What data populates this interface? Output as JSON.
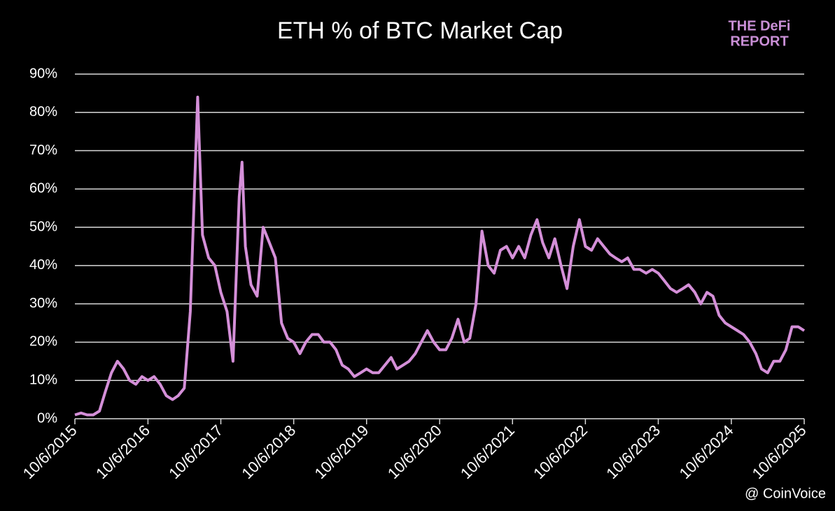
{
  "chart_data": {
    "type": "line",
    "title": "ETH % of BTC Market Cap",
    "logo": [
      "THE DeFi",
      "REPORT"
    ],
    "watermark": "@ CoinVoice",
    "x": [
      "10/6/2015",
      "11/6/2015",
      "12/6/2015",
      "1/6/2016",
      "2/6/2016",
      "3/6/2016",
      "4/6/2016",
      "5/6/2016",
      "6/6/2016",
      "7/6/2016",
      "8/6/2016",
      "9/6/2016",
      "10/6/2016",
      "11/6/2016",
      "12/6/2016",
      "1/6/2017",
      "2/6/2017",
      "3/6/2017",
      "4/6/2017",
      "5/6/2017",
      "6/12/2017",
      "7/6/2017",
      "8/6/2017",
      "9/6/2017",
      "10/6/2017",
      "11/6/2017",
      "12/6/2017",
      "1/6/2018",
      "1/20/2018",
      "2/6/2018",
      "3/6/2018",
      "4/6/2018",
      "5/6/2018",
      "6/6/2018",
      "7/6/2018",
      "8/6/2018",
      "9/6/2018",
      "10/6/2018",
      "11/6/2018",
      "12/6/2018",
      "1/6/2019",
      "2/6/2019",
      "3/6/2019",
      "4/6/2019",
      "5/6/2019",
      "6/6/2019",
      "7/6/2019",
      "8/6/2019",
      "9/6/2019",
      "10/6/2019",
      "11/6/2019",
      "12/6/2019",
      "1/6/2020",
      "2/6/2020",
      "3/6/2020",
      "4/6/2020",
      "5/6/2020",
      "6/6/2020",
      "7/6/2020",
      "8/6/2020",
      "9/6/2020",
      "10/6/2020",
      "11/6/2020",
      "12/6/2020",
      "1/6/2021",
      "2/6/2021",
      "3/6/2021",
      "4/6/2021",
      "5/6/2021",
      "6/6/2021",
      "7/6/2021",
      "8/6/2021",
      "9/6/2021",
      "10/6/2021",
      "11/6/2021",
      "12/6/2021",
      "1/6/2022",
      "2/6/2022",
      "3/6/2022",
      "4/6/2022",
      "5/6/2022",
      "6/6/2022",
      "7/6/2022",
      "8/6/2022",
      "9/6/2022",
      "10/6/2022",
      "11/6/2022",
      "12/6/2022",
      "1/6/2023",
      "2/6/2023",
      "3/6/2023",
      "4/6/2023",
      "5/6/2023",
      "6/6/2023",
      "7/6/2023",
      "8/6/2023",
      "9/6/2023",
      "10/6/2023",
      "11/6/2023",
      "12/6/2023",
      "1/6/2024",
      "2/6/2024",
      "3/6/2024",
      "4/6/2024",
      "5/6/2024",
      "6/6/2024",
      "7/6/2024",
      "8/6/2024",
      "9/6/2024",
      "10/6/2024",
      "11/6/2024",
      "12/6/2024",
      "1/6/2025",
      "2/6/2025",
      "3/6/2025",
      "4/6/2025",
      "5/6/2025",
      "6/6/2025",
      "7/6/2025",
      "8/6/2025",
      "9/6/2025",
      "10/6/2025"
    ],
    "series": [
      {
        "name": "ETH % of BTC",
        "color": "#d48fd8",
        "values": [
          1,
          1.5,
          1,
          1,
          2,
          7,
          12,
          15,
          13,
          10,
          9,
          11,
          10,
          11,
          9,
          6,
          5,
          6,
          8,
          28,
          84,
          48,
          42,
          40,
          33,
          28,
          15,
          58,
          67,
          45,
          35,
          32,
          50,
          46,
          42,
          25,
          21,
          20,
          17,
          20,
          22,
          22,
          20,
          20,
          18,
          14,
          13,
          11,
          12,
          13,
          12,
          12,
          14,
          16,
          13,
          14,
          15,
          17,
          20,
          23,
          20,
          18,
          18,
          21,
          26,
          20,
          21,
          30,
          49,
          40,
          38,
          44,
          45,
          42,
          45,
          42,
          48,
          52,
          46,
          42,
          47,
          40,
          34,
          45,
          52,
          45,
          44,
          47,
          45,
          43,
          42,
          41,
          42,
          39,
          39,
          38,
          39,
          38,
          36,
          34,
          33,
          34,
          35,
          33,
          30,
          33,
          32,
          27,
          25,
          24,
          23,
          22,
          20,
          17,
          13,
          12,
          15,
          15,
          18,
          24,
          24,
          23
        ]
      }
    ],
    "xticks": [
      "10/6/2015",
      "10/6/2016",
      "10/6/2017",
      "10/6/2018",
      "10/6/2019",
      "10/6/2020",
      "10/6/2021",
      "10/6/2022",
      "10/6/2023",
      "10/6/2024",
      "10/6/2025"
    ],
    "ylim": [
      0,
      90
    ],
    "yticks": [
      {
        "value": 0,
        "label": "0%"
      },
      {
        "value": 10,
        "label": "10%"
      },
      {
        "value": 20,
        "label": "20%"
      },
      {
        "value": 30,
        "label": "30%"
      },
      {
        "value": 40,
        "label": "40%"
      },
      {
        "value": 50,
        "label": "50%"
      },
      {
        "value": 60,
        "label": "60%"
      },
      {
        "value": 70,
        "label": "70%"
      },
      {
        "value": 80,
        "label": "80%"
      },
      {
        "value": 90,
        "label": "90%"
      }
    ],
    "grid": true
  }
}
